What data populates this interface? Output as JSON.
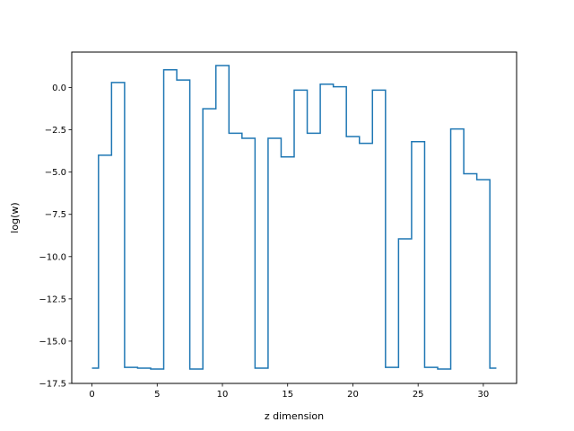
{
  "chart_data": {
    "type": "line",
    "drawstyle": "steps-mid",
    "xlabel": "z dimension",
    "ylabel": "log(w)",
    "xlim": [
      -1.55,
      32.55
    ],
    "ylim": [
      -17.5,
      2.1
    ],
    "xticks": [
      0,
      5,
      10,
      15,
      20,
      25,
      30
    ],
    "xtick_labels": [
      "0",
      "5",
      "10",
      "15",
      "20",
      "25",
      "30"
    ],
    "yticks": [
      -17.5,
      -15.0,
      -12.5,
      -10.0,
      -7.5,
      -5.0,
      -2.5,
      0.0
    ],
    "ytick_labels": [
      "−17.5",
      "−15.0",
      "−12.5",
      "−10.0",
      "−7.5",
      "−5.0",
      "−2.5",
      "0.0"
    ],
    "grid": false,
    "series": [
      {
        "color": "#1f77b4",
        "x": [
          0,
          1,
          2,
          3,
          4,
          5,
          6,
          7,
          8,
          9,
          10,
          11,
          12,
          13,
          14,
          15,
          16,
          17,
          18,
          19,
          20,
          21,
          22,
          23,
          24,
          25,
          26,
          27,
          28,
          29,
          30,
          31
        ],
        "y": [
          -16.6,
          -4.0,
          0.3,
          -16.55,
          -16.6,
          -16.65,
          1.05,
          0.45,
          -16.65,
          -1.25,
          1.3,
          -2.7,
          -3.0,
          -16.6,
          -3.0,
          -4.1,
          -0.15,
          -2.7,
          0.2,
          0.05,
          -2.9,
          -3.3,
          -0.15,
          -16.55,
          -8.95,
          -3.2,
          -16.55,
          -16.65,
          -2.45,
          -5.1,
          -5.45,
          -16.6
        ]
      }
    ]
  }
}
